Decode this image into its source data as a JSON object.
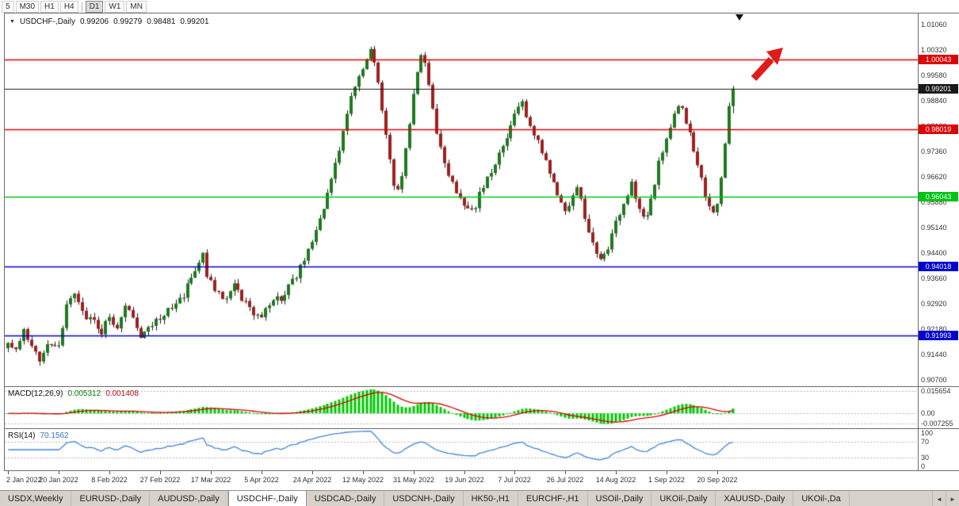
{
  "toolbar": {
    "timeframes": [
      "5",
      "M30",
      "H1",
      "H4",
      "D1",
      "W1",
      "MN"
    ],
    "active_timeframe": "D1"
  },
  "chart": {
    "symbol_title": "USDCHF-,Daily",
    "open": "0.99206",
    "high": "0.99279",
    "low": "0.98481",
    "close": "0.99201",
    "price_axis_labels": [
      "1.01060",
      "1.00320",
      "0.99580",
      "0.98840",
      "0.98100",
      "0.97360",
      "0.96620",
      "0.95880",
      "0.95140",
      "0.94400",
      "0.93660",
      "0.92920",
      "0.92180",
      "0.91440",
      "0.90700"
    ]
  },
  "macd_pane": {
    "title": "MACD(12,26,9)",
    "main_value": "0.005312",
    "signal_value": "0.001408",
    "scale_labels": [
      "0.015654",
      "0.00",
      "-0.007255"
    ]
  },
  "rsi_pane": {
    "title": "RSI(14)",
    "value": "70.1562",
    "scale_labels": [
      "100",
      "70",
      "30",
      "0"
    ]
  },
  "tabs": {
    "items": [
      "USDX,Weekly",
      "EURUSD-,Daily",
      "AUDUSD-,Daily",
      "USDCHF-,Daily",
      "USDCAD-,Daily",
      "USDCNH-,Daily",
      "HK50-,H1",
      "EURCHF-,H1",
      "USOil-,Daily",
      "UKOil-,Daily",
      "XAUUSD-,Daily",
      "UKOil-,Da"
    ],
    "active": "USDCHF-,Daily"
  },
  "chart_data": {
    "type": "candlestick",
    "symbol": "USDCHF-",
    "period": "Daily",
    "candle_count": 187,
    "tick_interval": 13,
    "seed": 9,
    "noise": 0.0024,
    "wick": 0.0014,
    "price_range": [
      0.9052,
      1.0139
    ],
    "last_candle": {
      "open": 0.99206,
      "high": 0.99279,
      "low": 0.98481,
      "close": 0.99201
    },
    "current_price": {
      "price": 0.99201,
      "label": "0.99201",
      "color": "#1a1a1a"
    },
    "horizontal_lines": [
      {
        "price": 1.00043,
        "label": "1.00043",
        "color": "#dc0404"
      },
      {
        "price": 0.98019,
        "label": "0.98019",
        "color": "#dc0404"
      },
      {
        "price": 0.96043,
        "label": "0.96043",
        "color": "#00c414"
      },
      {
        "price": 0.94018,
        "label": "0.94018",
        "color": "#0000cd"
      },
      {
        "price": 0.91993,
        "label": "0.91993",
        "color": "#0000cd"
      }
    ],
    "x_axis_labels": [
      "2 Jan 2022",
      "20 Jan 2022",
      "8 Feb 2022",
      "27 Feb 2022",
      "17 Mar 2022",
      "5 Apr 2022",
      "24 Apr 2022",
      "12 May 2022",
      "31 May 2022",
      "19 Jun 2022",
      "7 Jul 2022",
      "26 Jul 2022",
      "14 Aug 2022",
      "1 Sep 2022",
      "20 Sep 2022"
    ],
    "waypoints": [
      [
        0,
        0.917
      ],
      [
        2,
        0.915
      ],
      [
        4,
        0.9208
      ],
      [
        6,
        0.916
      ],
      [
        8,
        0.9128
      ],
      [
        10,
        0.9185
      ],
      [
        13,
        0.917
      ],
      [
        15,
        0.929
      ],
      [
        17,
        0.9322
      ],
      [
        19,
        0.9268
      ],
      [
        22,
        0.924
      ],
      [
        24,
        0.9212
      ],
      [
        26,
        0.9258
      ],
      [
        28,
        0.9225
      ],
      [
        30,
        0.9282
      ],
      [
        32,
        0.925
      ],
      [
        34,
        0.9205
      ],
      [
        36,
        0.9232
      ],
      [
        39,
        0.9245
      ],
      [
        42,
        0.9282
      ],
      [
        45,
        0.9322
      ],
      [
        47,
        0.9362
      ],
      [
        49,
        0.9415
      ],
      [
        50,
        0.9432
      ],
      [
        51,
        0.938
      ],
      [
        53,
        0.9335
      ],
      [
        55,
        0.9302
      ],
      [
        57,
        0.933
      ],
      [
        58,
        0.9358
      ],
      [
        60,
        0.931
      ],
      [
        62,
        0.9285
      ],
      [
        64,
        0.9252
      ],
      [
        67,
        0.9288
      ],
      [
        70,
        0.9312
      ],
      [
        72,
        0.9342
      ],
      [
        74,
        0.9378
      ],
      [
        76,
        0.9422
      ],
      [
        78,
        0.9472
      ],
      [
        80,
        0.9532
      ],
      [
        82,
        0.9612
      ],
      [
        84,
        0.9692
      ],
      [
        85,
        0.9742
      ],
      [
        86,
        0.9802
      ],
      [
        87,
        0.9852
      ],
      [
        88,
        0.9895
      ],
      [
        89,
        0.993
      ],
      [
        90,
        0.996
      ],
      [
        91,
        0.9985
      ],
      [
        92,
        1.001
      ],
      [
        93,
        1.003
      ],
      [
        94,
        0.9995
      ],
      [
        95,
        0.9935
      ],
      [
        96,
        0.9862
      ],
      [
        97,
        0.9778
      ],
      [
        98,
        0.9702
      ],
      [
        99,
        0.9645
      ],
      [
        100,
        0.9618
      ],
      [
        101,
        0.9675
      ],
      [
        102,
        0.9745
      ],
      [
        103,
        0.9825
      ],
      [
        104,
        0.9905
      ],
      [
        105,
        0.997
      ],
      [
        106,
        1.0015
      ],
      [
        107,
        0.9985
      ],
      [
        108,
        0.993
      ],
      [
        109,
        0.9865
      ],
      [
        110,
        0.98
      ],
      [
        111,
        0.975
      ],
      [
        112,
        0.9705
      ],
      [
        113,
        0.967
      ],
      [
        114,
        0.9645
      ],
      [
        115,
        0.9615
      ],
      [
        117,
        0.9582
      ],
      [
        119,
        0.9556
      ],
      [
        120,
        0.9572
      ],
      [
        121,
        0.962
      ],
      [
        123,
        0.9662
      ],
      [
        125,
        0.97
      ],
      [
        127,
        0.9755
      ],
      [
        129,
        0.9812
      ],
      [
        131,
        0.9858
      ],
      [
        132,
        0.9878
      ],
      [
        133,
        0.9842
      ],
      [
        135,
        0.9788
      ],
      [
        137,
        0.973
      ],
      [
        139,
        0.9672
      ],
      [
        141,
        0.9602
      ],
      [
        143,
        0.9558
      ],
      [
        145,
        0.9612
      ],
      [
        146,
        0.9638
      ],
      [
        147,
        0.9598
      ],
      [
        148,
        0.9548
      ],
      [
        149,
        0.9505
      ],
      [
        150,
        0.9468
      ],
      [
        151,
        0.9438
      ],
      [
        152,
        0.9415
      ],
      [
        153,
        0.9438
      ],
      [
        154,
        0.9458
      ],
      [
        156,
        0.9525
      ],
      [
        158,
        0.9592
      ],
      [
        160,
        0.9638
      ],
      [
        162,
        0.9578
      ],
      [
        163,
        0.9548
      ],
      [
        164,
        0.9562
      ],
      [
        165,
        0.96
      ],
      [
        166,
        0.9648
      ],
      [
        167,
        0.9698
      ],
      [
        168,
        0.9728
      ],
      [
        169,
        0.9762
      ],
      [
        170,
        0.9812
      ],
      [
        171,
        0.9848
      ],
      [
        172,
        0.9868
      ],
      [
        173,
        0.9858
      ],
      [
        174,
        0.9822
      ],
      [
        175,
        0.9788
      ],
      [
        176,
        0.9742
      ],
      [
        177,
        0.9698
      ],
      [
        178,
        0.9652
      ],
      [
        179,
        0.9608
      ],
      [
        180,
        0.9588
      ],
      [
        181,
        0.9552
      ],
      [
        182,
        0.9572
      ],
      [
        183,
        0.965
      ],
      [
        184,
        0.976
      ],
      [
        185,
        0.9858
      ],
      [
        186,
        0.992
      ]
    ],
    "macd": {
      "fast": 12,
      "slow": 26,
      "signal": 9,
      "scale": [
        0.0185,
        -0.0105
      ],
      "levels": [
        0.015654,
        0,
        -0.007255
      ]
    },
    "rsi": {
      "period": 14,
      "scale": [
        0,
        100
      ],
      "levels": [
        70,
        30
      ]
    },
    "colors": {
      "candle_up": "#1f7a1f",
      "candle_down": "#9e2121",
      "wick": "#1c1c1c",
      "macd_hist": "#00c800",
      "macd_signal": "#d40000",
      "rsi_line": "#4084d8",
      "arrow_red": "#e11b1b"
    }
  }
}
